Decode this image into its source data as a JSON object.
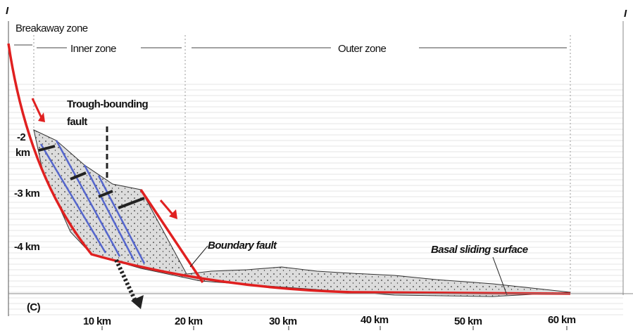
{
  "header": {
    "left_marker": "I",
    "right_marker": "I"
  },
  "zones": [
    "Breakaway zone",
    "Inner zone",
    "Outer zone"
  ],
  "trough_label": [
    "Trough-bounding",
    "fault"
  ],
  "depth_labels": [
    "-2",
    "km",
    "-3 km",
    "-4 km"
  ],
  "boundary_fault": "Boundary fault",
  "basal_surface": "Basal sliding surface",
  "panel": "(C)",
  "distance_labels": [
    "10 km",
    "20 km",
    "30 km",
    "40 km",
    "50 km",
    "60 km"
  ]
}
